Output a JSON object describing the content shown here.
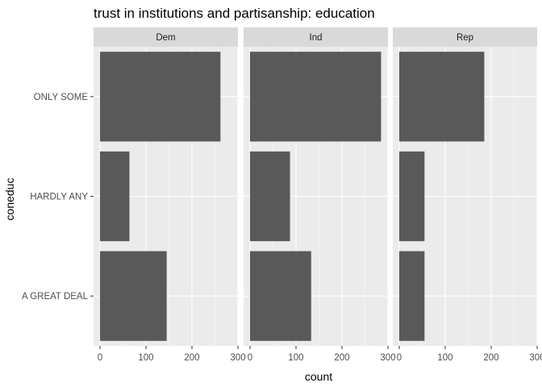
{
  "chart_data": {
    "type": "bar",
    "orientation": "horizontal",
    "title": "trust in institutions and partisanship: education",
    "xlabel": "count",
    "ylabel": "coneduc",
    "categories": [
      "A GREAT DEAL",
      "HARDLY ANY",
      "ONLY SOME"
    ],
    "facets": [
      {
        "name": "Dem",
        "values": [
          145,
          64,
          262
        ]
      },
      {
        "name": "Ind",
        "values": [
          133,
          87,
          285
        ]
      },
      {
        "name": "Rep",
        "values": [
          55,
          55,
          185
        ]
      }
    ],
    "xlim": [
      -14,
      300
    ],
    "xticks": [
      0,
      100,
      200,
      300
    ],
    "grid": true,
    "colors": {
      "bar": "#595959",
      "panel_background": "#ebebeb",
      "strip_background": "#d9d9d9",
      "grid_major": "#ffffff",
      "grid_minor": "#f5f5f5"
    }
  }
}
